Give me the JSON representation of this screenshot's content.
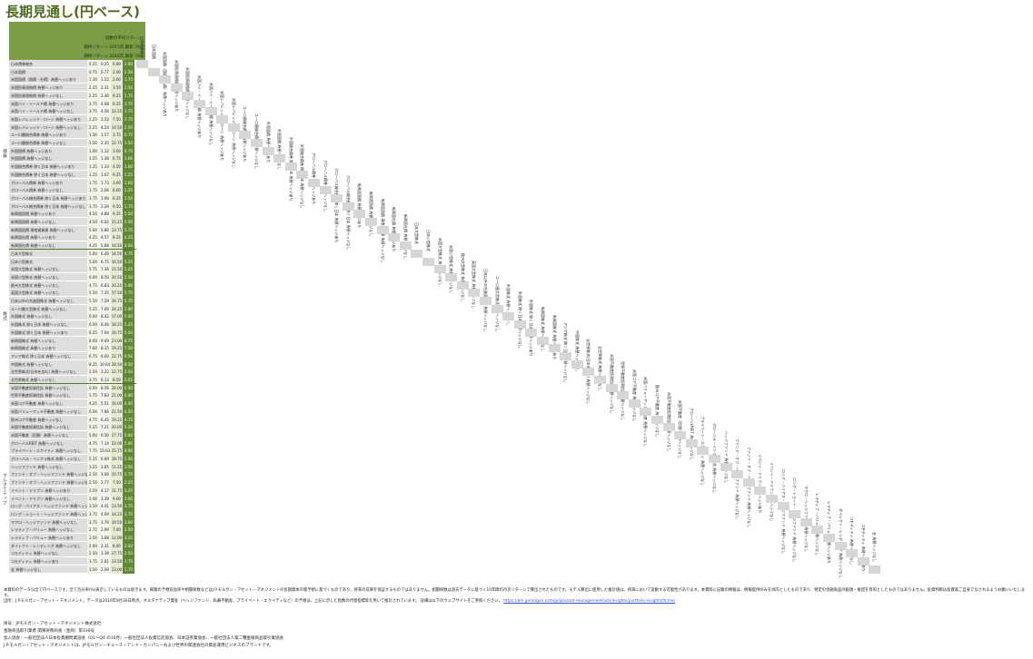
{
  "title": "長期見通し(円ベース)",
  "headers": {
    "h1": "期待リターン 2016年,最新 (%)",
    "h2": "指数の平均リターン",
    "h3": "期待リターン 2015年,最新 (%)",
    "h4": "期待リターン 2016年,最新 (%)"
  },
  "first_col_headers": [
    "日本債券総合",
    "日本国債",
    "外国国債 ヘッジなし"
  ],
  "sections": [
    {
      "label": "債券",
      "rows": [
        {
          "name": "日本債券総合",
          "v": [
            "0.25",
            "0.25",
            "0.00",
            "2.00"
          ]
        },
        {
          "name": "日本国債",
          "v": [
            "0.75",
            "0.77",
            "2.00",
            "2.56"
          ]
        },
        {
          "name": "米国国債（国債・社債）為替ヘッジあり",
          "v": [
            "1.50",
            "1.52",
            "2.00",
            "1.75"
          ]
        },
        {
          "name": "米国投資適格債 為替ヘッジあり",
          "v": [
            "2.25",
            "2.31",
            "3.50",
            "1.50"
          ]
        },
        {
          "name": "米国投資適格債 為替ヘッジなし",
          "v": [
            "2.25",
            "2.46",
            "9.25",
            "1.75"
          ]
        },
        {
          "name": "米国ハイ・イールド債 為替ヘッジあり",
          "v": [
            "3.75",
            "4.08",
            "6.25",
            "3.75"
          ]
        },
        {
          "name": "米国ハイ・イールド債 為替ヘッジなし",
          "v": [
            "3.75",
            "4.56",
            "12.25",
            "3.75"
          ]
        },
        {
          "name": "米国レバレッジド・ローン 為替ヘッジあり",
          "v": [
            "2.25",
            "2.52",
            "7.50",
            "2.75"
          ]
        },
        {
          "name": "米国レバレッジド・ローン 為替ヘッジなし",
          "v": [
            "2.25",
            "4.24",
            "14.50",
            "2.50"
          ]
        },
        {
          "name": "ユーロ圏総合債券 為替ヘッジあり",
          "v": [
            "1.50",
            "1.57",
            "3.75",
            "0.75"
          ]
        },
        {
          "name": "ユーロ圏総合債券 為替ヘッジなし",
          "v": [
            "1.50",
            "2.35",
            "12.75",
            "1.50"
          ]
        },
        {
          "name": "外国国債 為替ヘッジあり",
          "v": [
            "1.00",
            "1.12",
            "3.00",
            "0.75"
          ]
        },
        {
          "name": "外国国債 為替ヘッジなし",
          "v": [
            "1.25",
            "1.38",
            "6.75",
            "1.00"
          ]
        },
        {
          "name": "外国総合債券 除く日本 為替ヘッジあり",
          "v": [
            "1.25",
            "1.33",
            "4.50",
            "1.00"
          ]
        },
        {
          "name": "外国総合債券 除く日本 為替ヘッジなし",
          "v": [
            "1.25",
            "1.67",
            "9.25",
            "1.25"
          ]
        },
        {
          "name": "グローバル債券 為替ヘッジあり",
          "v": [
            "1.75",
            "1.73",
            "3.00",
            "1.00"
          ]
        },
        {
          "name": "グローバル債券 為替ヘッジなし",
          "v": [
            "1.75",
            "2.06",
            "8.00",
            "1.25"
          ]
        },
        {
          "name": "グローバル総合債券 除く日本 為替ヘッジあり",
          "v": [
            "1.75",
            "1.90",
            "6.25",
            "1.50"
          ]
        },
        {
          "name": "グローバル総合債券 除く日本 為替ヘッジなし",
          "v": [
            "1.75",
            "2.29",
            "9.50",
            "1.75"
          ]
        },
        {
          "name": "新興国国債 為替ヘッジあり",
          "v": [
            "4.50",
            "4.88",
            "9.25",
            "5.50"
          ]
        },
        {
          "name": "新興国国債 為替ヘッジなし",
          "v": [
            "4.50",
            "6.02",
            "15.25",
            "5.50"
          ]
        },
        {
          "name": "新興国国債 現地通貨建 為替ヘッジなし",
          "v": [
            "5.00",
            "5.86",
            "13.75",
            "5.75"
          ]
        },
        {
          "name": "新興国社債 為替ヘッジあり",
          "v": [
            "4.25",
            "4.57",
            "8.25",
            "4.25"
          ]
        },
        {
          "name": "新興国社債 為替ヘッジなし",
          "v": [
            "4.25",
            "5.88",
            "14.50",
            "4.50"
          ]
        }
      ]
    },
    {
      "label": "株式",
      "rows": [
        {
          "name": "日本大型株式",
          "v": [
            "5.00",
            "6.46",
            "14.50",
            "4.75"
          ]
        },
        {
          "name": "日本小型株式",
          "v": [
            "5.00",
            "6.75",
            "16.50",
            "5.25"
          ]
        },
        {
          "name": "米国大型株式 為替ヘッジなし",
          "v": [
            "5.75",
            "7.36",
            "15.50",
            "5.25"
          ]
        },
        {
          "name": "米国小型株式 為替ヘッジなし",
          "v": [
            "6.00",
            "8.56",
            "20.50",
            "5.50"
          ]
        },
        {
          "name": "欧州大型株式 為替ヘッジなし",
          "v": [
            "4.75",
            "6.83",
            "20.25",
            "5.00"
          ]
        },
        {
          "name": "英国大型株式 為替ヘッジなし",
          "v": [
            "5.50",
            "7.35",
            "17.50",
            "5.75"
          ]
        },
        {
          "name": "日本以外の先進国株式 為替ヘッジなし",
          "v": [
            "5.50",
            "7.29",
            "16.75",
            "5.75"
          ]
        },
        {
          "name": "ユーロ圏大型株式 為替ヘッジなし",
          "v": [
            "5.25",
            "7.66",
            "24.25",
            "5.00"
          ]
        },
        {
          "name": "外国株式 為替ヘッジなし",
          "v": [
            "6.00",
            "8.42",
            "17.00",
            "5.50"
          ]
        },
        {
          "name": "外国株式 除く日本 為替ヘッジなし",
          "v": [
            "6.00",
            "8.46",
            "18.25",
            "5.25"
          ]
        },
        {
          "name": "外国株式 除く日本 為替ヘッジあり",
          "v": [
            "6.25",
            "7.94",
            "16.75",
            "5.50"
          ]
        },
        {
          "name": "新興国株式 為替ヘッジなし",
          "v": [
            "8.00",
            "9.49",
            "23.00",
            "8.75"
          ]
        },
        {
          "name": "新興国株式 為替ヘッジあり",
          "v": [
            "7.00",
            "8.35",
            "19.25",
            "7.50"
          ]
        },
        {
          "name": "アジア株式 除く日本 為替ヘッジなし",
          "v": [
            "6.75",
            "9.00",
            "22.75",
            "6.50"
          ]
        },
        {
          "name": "中国株式 為替ヘッジなし",
          "v": [
            "8.25",
            "10.64",
            "28.50",
            "8.50"
          ]
        },
        {
          "name": "全世界株式(日本を含む) 為替ヘッジなし",
          "v": [
            "2.50",
            "3.22",
            "12.75",
            "2.50"
          ]
        },
        {
          "name": "全世界株式 為替ヘッジなし",
          "v": [
            "3.75",
            "6.13",
            "8.50",
            "3.25"
          ]
        }
      ]
    },
    {
      "label": "オルタナティブ",
      "rows": [
        {
          "name": "米国不動産投資信託 為替ヘッジなし",
          "v": [
            "6.00",
            "8.56",
            "24.00",
            "6.50"
          ]
        },
        {
          "name": "世界不動産投資信託 為替ヘッジなし",
          "v": [
            "5.75",
            "7.83",
            "21.00",
            "6.00"
          ]
        },
        {
          "name": "米国コア不動産 為替ヘッジなし",
          "v": [
            "4.25",
            "5.51",
            "16.00",
            "4.50"
          ]
        },
        {
          "name": "米国バリューアッド不動産 為替ヘッジなし",
          "v": [
            "6.00",
            "7.86",
            "21.50",
            "6.50"
          ]
        },
        {
          "name": "欧州コア不動産 為替ヘッジなし",
          "v": [
            "4.75",
            "6.45",
            "19.25",
            "4.75"
          ]
        },
        {
          "name": "米国不動産投資信託 為替ヘッジなし",
          "v": [
            "5.25",
            "7.21",
            "20.00",
            "5.50"
          ]
        },
        {
          "name": "米国不動産（民間）為替ヘッジなし",
          "v": [
            "5.00",
            "6.56",
            "17.75",
            "5.00"
          ]
        },
        {
          "name": "グローバルREIT 為替ヘッジなし",
          "v": [
            "4.75",
            "7.14",
            "22.00",
            "5.00"
          ]
        },
        {
          "name": "プライベート・エクイティ 為替ヘッジなし",
          "v": [
            "7.75",
            "10.63",
            "25.75",
            "8.00"
          ]
        },
        {
          "name": "グローバル・インフラ株式 為替ヘッジなし",
          "v": [
            "5.25",
            "6.89",
            "18.75",
            "5.50"
          ]
        },
        {
          "name": "ヘッジファンド 為替ヘッジなし",
          "v": [
            "3.25",
            "3.85",
            "11.25",
            "3.50"
          ]
        },
        {
          "name": "ファンド・オブ・ヘッジファンド 為替ヘッジなし",
          "v": [
            "2.50",
            "3.06",
            "10.75",
            "2.75"
          ]
        },
        {
          "name": "ファンド・オブ・ヘッジファンド 為替ヘッジなし",
          "v": [
            "2.50",
            "2.77",
            "7.50",
            "2.25"
          ]
        },
        {
          "name": "イベント・ドリブン 為替ヘッジあり",
          "v": [
            "3.50",
            "4.17",
            "11.75",
            "3.25"
          ]
        },
        {
          "name": "イベント・ドリブン 為替ヘッジなし",
          "v": [
            "3.00",
            "3.39",
            "9.00",
            "3.00"
          ]
        },
        {
          "name": "ロング・バイアス・ヘッジファンド 為替ヘッジなし",
          "v": [
            "3.50",
            "4.41",
            "13.50",
            "3.75"
          ]
        },
        {
          "name": "ロング・ショート・ヘッジファンド 為替ヘッジなし",
          "v": [
            "3.75",
            "4.69",
            "14.25",
            "3.75"
          ]
        },
        {
          "name": "マクロ・ヘッジファンド 為替ヘッジなし",
          "v": [
            "3.75",
            "3.76",
            "10.50",
            "3.00"
          ]
        },
        {
          "name": "レラティブ・バリュー 為替ヘッジなし",
          "v": [
            "2.75",
            "2.99",
            "7.00",
            "2.50"
          ]
        },
        {
          "name": "レラティブ・バリュー 為替ヘッジあり",
          "v": [
            "3.50",
            "3.88",
            "12.00",
            "3.25"
          ]
        },
        {
          "name": "ダイレクト・レンディング 為替ヘッジなし",
          "v": [
            "2.00",
            "2.31",
            "8.00",
            "2.50"
          ]
        },
        {
          "name": "コモディティ 為替ヘッジなし",
          "v": [
            "2.50",
            "3.39",
            "17.75",
            "2.50"
          ]
        },
        {
          "name": "コモディティ 為替ヘッジあり",
          "v": [
            "1.75",
            "2.61",
            "13.50",
            "1.75"
          ]
        },
        {
          "name": "金 為替ヘッジなし",
          "v": [
            "1.50",
            "2.09",
            "13.00",
            "1.75"
          ]
        }
      ]
    }
  ],
  "footer": {
    "note": "本資料のデータは全て円ベースです。全て百分率(%)表示しているものは除きます。掲載の予想収益率や相関係数などはJ.P.モルガン・アセット・マネジメントの長期資本市場予想に基づくものであり、将来の成果を保証するものではありません。相関係数は過去データに基づく10年間の月次リターンで算出されたものです。モデル算出に使用した推計値は、将来において変動する可能性があります。本資料に記載の情報は、情報提供のみを目的としたものであり、特定の金融商品の勧誘・推奨を目的としたものではありません。投資判断は投資家ご自身でなされるようお願いいたします。",
    "sources": "出所：J.P.モルガン・アセット・マネジメント。データは2016年9月30日時点。オルタナティブ資産（ヘッジファンド、私募不動産、プライベート・エクイティなど）の予想は、上記に示した指数の代替指標等を用いて推計されています。",
    "link": "https://am.jpmorgan.com/jp/ja/asset-management/adv/insights/portfolio-insights/ltcma/",
    "link_prefix": "詳細は以下のウェブサイトをご参照ください。",
    "company1": "商号：JPモルガン・アセット・マネジメント株式会社",
    "company2": "金融商品取引業者 関東財務局長（金商）第330号",
    "company3": "加入協会：一般社団法人日本投資顧問業協会（Q1～Q4 の10月）一般社団法人投資信託協会、日本証券業協会、一般社団法人第二種金融商品取引業協会",
    "company4": "J.P.モルガン・アセット・マネジメントは、JPモルガン・チェース・アンド・カンパニーおよび世界の関連会社の資産運用ビジネスのブランドです。"
  }
}
